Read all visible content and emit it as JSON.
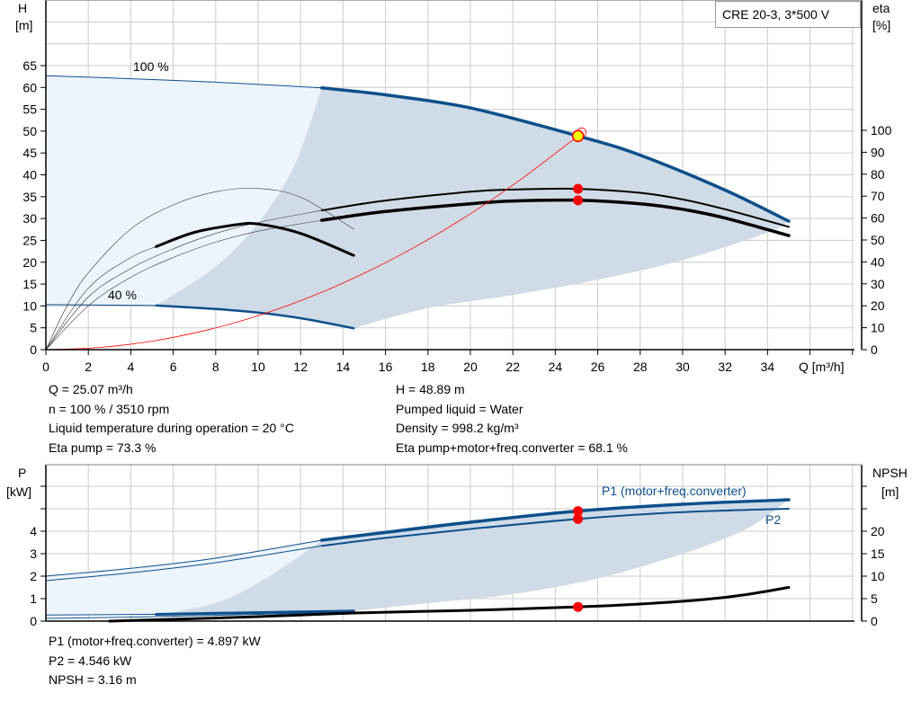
{
  "title": "CRE 20-3, 3*500 V",
  "colors": {
    "blue": "#0d4f8b",
    "light_fill": "#ecf4fd",
    "dark_fill": "#cfdbe6",
    "red": "#ff0000",
    "grid": "#d3d3d3",
    "duty_point": "#ffff00"
  },
  "chart_data": [
    {
      "type": "line",
      "name": "head-efficiency",
      "xlabel": "Q [m³/h]",
      "ylabel_left": [
        "H",
        "[m]"
      ],
      "ylabel_right": [
        "eta",
        "[%]"
      ],
      "xlim": [
        0,
        38
      ],
      "ylim_left": [
        0,
        80
      ],
      "ylim_right_eta_at_bottom_and_100": [
        0,
        100
      ],
      "x_ticks": [
        0,
        2,
        4,
        6,
        8,
        10,
        12,
        14,
        16,
        18,
        20,
        22,
        24,
        26,
        28,
        30,
        32,
        34
      ],
      "y_ticks_left": [
        0,
        5,
        10,
        15,
        20,
        25,
        30,
        35,
        40,
        45,
        50,
        55,
        60,
        65
      ],
      "y_ticks_right": [
        0,
        10,
        20,
        30,
        40,
        50,
        60,
        70,
        80,
        90,
        100
      ],
      "grid": true,
      "annotations": {
        "speed_max": "100 %",
        "speed_min": "40 %"
      },
      "series": {
        "head_100": [
          [
            0,
            62.7
          ],
          [
            4,
            62
          ],
          [
            8,
            61.2
          ],
          [
            13,
            59.9
          ],
          [
            16,
            58.3
          ],
          [
            20,
            55.3
          ],
          [
            25.07,
            48.89
          ],
          [
            28,
            44.5
          ],
          [
            32,
            36.5
          ],
          [
            35,
            29.4
          ]
        ],
        "head_40": [
          [
            0,
            10.3
          ],
          [
            5.2,
            10.1
          ],
          [
            8,
            9.3
          ],
          [
            10,
            8.5
          ],
          [
            12,
            7.2
          ],
          [
            14.5,
            4.9
          ]
        ],
        "eta_pump_100": [
          [
            0,
            0
          ],
          [
            2,
            24
          ],
          [
            4,
            37
          ],
          [
            6,
            46
          ],
          [
            8,
            53
          ],
          [
            10,
            58
          ],
          [
            13,
            63.5
          ],
          [
            16,
            68
          ],
          [
            20,
            72
          ],
          [
            22,
            73
          ],
          [
            25.07,
            73.3
          ],
          [
            28,
            71.5
          ],
          [
            30,
            68.5
          ],
          [
            32,
            64
          ],
          [
            35,
            56
          ]
        ],
        "eta_total_100": [
          [
            0,
            0
          ],
          [
            2,
            20
          ],
          [
            4,
            33
          ],
          [
            6,
            42
          ],
          [
            8,
            49
          ],
          [
            10,
            54
          ],
          [
            13,
            59
          ],
          [
            16,
            63
          ],
          [
            20,
            66.5
          ],
          [
            22,
            67.8
          ],
          [
            25.07,
            68.1
          ],
          [
            28,
            66.5
          ],
          [
            30,
            64
          ],
          [
            32,
            60
          ],
          [
            35,
            52
          ]
        ],
        "eta_pump_40": [
          [
            0,
            0
          ],
          [
            1,
            20
          ],
          [
            2,
            35
          ],
          [
            4,
            55
          ],
          [
            6,
            66
          ],
          [
            8,
            72
          ],
          [
            10,
            73.5
          ],
          [
            12,
            69.5
          ],
          [
            14.5,
            55
          ]
        ],
        "eta_total_40": [
          [
            0,
            0
          ],
          [
            2,
            28
          ],
          [
            4,
            42
          ],
          [
            5.2,
            47
          ],
          [
            7,
            53.5
          ],
          [
            9,
            57
          ],
          [
            10,
            57.3
          ],
          [
            12,
            53
          ],
          [
            14.5,
            43
          ]
        ],
        "system_curve": [
          [
            0,
            0
          ],
          [
            2.5,
            0.49
          ],
          [
            5,
            1.94
          ],
          [
            7.5,
            4.38
          ],
          [
            10,
            7.78
          ],
          [
            12.5,
            12.15
          ],
          [
            15,
            17.5
          ],
          [
            17.5,
            23.8
          ],
          [
            20,
            31.1
          ],
          [
            22.5,
            39.4
          ],
          [
            25.07,
            48.89
          ]
        ]
      },
      "duty_point": {
        "Q": 25.07,
        "H": 48.89,
        "eta_pump": 73.3,
        "eta_total": 68.1
      }
    },
    {
      "type": "line",
      "name": "power-npsh",
      "ylabel_left": [
        "P",
        "[kW]"
      ],
      "ylabel_right": [
        "NPSH",
        "[m]"
      ],
      "xlim": [
        0,
        38
      ],
      "ylim_left": [
        0,
        7
      ],
      "ylim_right": [
        0,
        35
      ],
      "y_ticks_left": [
        0,
        1,
        2,
        3,
        4
      ],
      "y_ticks_right": [
        0,
        5,
        10,
        15,
        20
      ],
      "grid": true,
      "legend": {
        "p1": "P1 (motor+freq.converter)",
        "p2": "P2"
      },
      "series": {
        "p1_100": [
          [
            0,
            2.0
          ],
          [
            4,
            2.35
          ],
          [
            8,
            2.8
          ],
          [
            13,
            3.6
          ],
          [
            16,
            3.95
          ],
          [
            20,
            4.4
          ],
          [
            25.07,
            4.897
          ],
          [
            30,
            5.2
          ],
          [
            35,
            5.4
          ]
        ],
        "p2_100": [
          [
            0,
            1.8
          ],
          [
            4,
            2.15
          ],
          [
            8,
            2.6
          ],
          [
            13,
            3.35
          ],
          [
            16,
            3.7
          ],
          [
            20,
            4.1
          ],
          [
            25.07,
            4.546
          ],
          [
            30,
            4.85
          ],
          [
            35,
            5.0
          ]
        ],
        "p1_40": [
          [
            0,
            0.27
          ],
          [
            5.2,
            0.3
          ],
          [
            10,
            0.38
          ],
          [
            14.5,
            0.45
          ]
        ],
        "p2_40": [
          [
            0,
            0.12
          ],
          [
            5.2,
            0.2
          ],
          [
            10,
            0.3
          ],
          [
            14.5,
            0.4
          ]
        ],
        "npsh": [
          [
            3,
            0
          ],
          [
            5.2,
            0.3
          ],
          [
            10,
            1
          ],
          [
            14.5,
            1.8
          ],
          [
            20,
            2.4
          ],
          [
            25.07,
            3.16
          ],
          [
            28,
            3.8
          ],
          [
            31,
            4.8
          ],
          [
            33,
            5.9
          ],
          [
            35,
            7.5
          ]
        ]
      },
      "duty_point": {
        "Q": 25.07,
        "P1": 4.897,
        "P2": 4.546,
        "NPSH": 3.16
      }
    }
  ],
  "info_top": {
    "left": [
      "Q = 25.07 m³/h",
      "n = 100 % / 3510 rpm",
      "Liquid temperature during operation = 20 °C",
      "Eta pump = 73.3 %"
    ],
    "right": [
      "H = 48.89 m",
      "Pumped liquid = Water",
      "Density = 998.2 kg/m³",
      "Eta pump+motor+freq.converter = 68.1 %"
    ]
  },
  "info_bottom": [
    "P1 (motor+freq.converter) = 4.897 kW",
    "P2 = 4.546 kW",
    "NPSH = 3.16 m"
  ]
}
